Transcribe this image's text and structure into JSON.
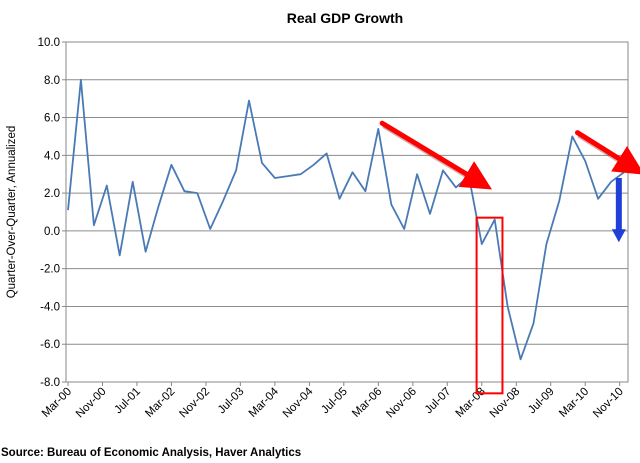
{
  "chart_data": {
    "type": "line",
    "title": "Real GDP Growth",
    "xlabel": "",
    "ylabel": "Quarter-Over-Quarter, Annualized",
    "ylim": [
      -8.0,
      10.0
    ],
    "y_ticks": [
      "10.0",
      "8.0",
      "6.0",
      "4.0",
      "2.0",
      "0.0",
      "-2.0",
      "-4.0",
      "-6.0",
      "-8.0"
    ],
    "y_tick_values": [
      10,
      8,
      6,
      4,
      2,
      0,
      -2,
      -4,
      -6,
      -8
    ],
    "x_tick_labels": [
      {
        "label": "Mar-00",
        "index": 0
      },
      {
        "label": "Nov-00",
        "index": 2.67
      },
      {
        "label": "Jul-01",
        "index": 5.33
      },
      {
        "label": "Mar-02",
        "index": 8
      },
      {
        "label": "Nov-02",
        "index": 10.67
      },
      {
        "label": "Jul-03",
        "index": 13.33
      },
      {
        "label": "Mar-04",
        "index": 16
      },
      {
        "label": "Nov-04",
        "index": 18.67
      },
      {
        "label": "Jul-05",
        "index": 21.33
      },
      {
        "label": "Mar-06",
        "index": 24
      },
      {
        "label": "Nov-06",
        "index": 26.67
      },
      {
        "label": "Jul-07",
        "index": 29.33
      },
      {
        "label": "Mar-08",
        "index": 32
      },
      {
        "label": "Nov-08",
        "index": 34.67
      },
      {
        "label": "Jul-09",
        "index": 37.33
      },
      {
        "label": "Mar-10",
        "index": 40
      },
      {
        "label": "Nov-10",
        "index": 42.67
      }
    ],
    "series": [
      {
        "name": "Real GDP Growth",
        "color": "#4a7ab5",
        "values": [
          1.1,
          8.0,
          0.3,
          2.4,
          -1.3,
          2.6,
          -1.1,
          1.3,
          3.5,
          2.1,
          2.0,
          0.1,
          1.6,
          3.2,
          6.9,
          3.6,
          2.8,
          2.9,
          3.0,
          3.5,
          4.1,
          1.7,
          3.1,
          2.1,
          5.4,
          1.4,
          0.1,
          3.0,
          0.9,
          3.2,
          2.3,
          2.9,
          -0.7,
          0.6,
          -4.0,
          -6.8,
          -4.9,
          -0.7,
          1.6,
          5.0,
          3.7,
          1.7,
          2.6,
          3.1
        ]
      }
    ],
    "annotations": {
      "red_arrow_color": "#ff0000",
      "blue_arrow_color": "#1f3fd6",
      "box_color": "#ff0000",
      "red_arrows": [
        {
          "from_index": 24.3,
          "from_value": 5.7,
          "to_index": 31.8,
          "to_value": 2.6
        },
        {
          "from_index": 39.4,
          "from_value": 5.2,
          "to_index": 43.6,
          "to_value": 3.4
        }
      ],
      "blue_arrow": {
        "index": 42.6,
        "from_value": 2.8,
        "to_value": -0.6
      },
      "highlight_box": {
        "from_index": 31.6,
        "to_index": 33.6,
        "from_value": 0.7,
        "to_value": -8.6
      }
    },
    "grid": true
  },
  "source": "Source:  Bureau of Economic Analysis, Haver Analytics"
}
